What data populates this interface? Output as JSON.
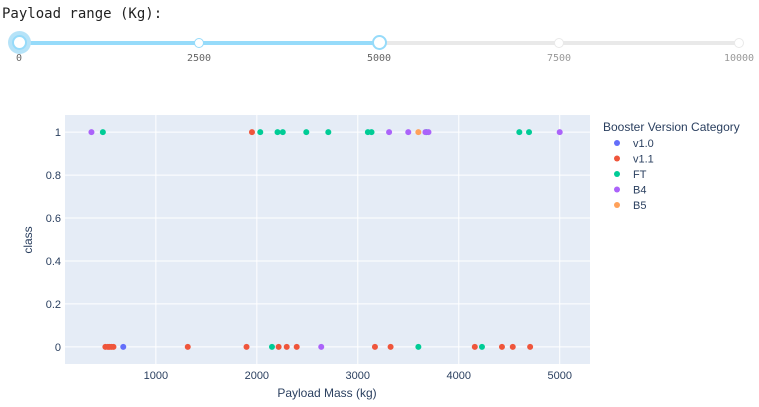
{
  "slider": {
    "label": "Payload range (Kg):",
    "min": 0,
    "max": 10000,
    "value": [
      0,
      5000
    ],
    "marks": [
      "0",
      "2500",
      "5000",
      "7500",
      "10000"
    ],
    "colors": {
      "track": "#96dbfa",
      "rail": "#e9e9e9"
    }
  },
  "chart_data": {
    "type": "scatter",
    "xlabel": "Payload Mass (kg)",
    "ylabel": "class",
    "xlim": [
      100,
      5300
    ],
    "ylim": [
      -0.08,
      1.08
    ],
    "xticks": [
      1000,
      2000,
      3000,
      4000,
      5000
    ],
    "xtick_labels": [
      "1000",
      "2000",
      "3000",
      "4000",
      "5000"
    ],
    "yticks": [
      0,
      0.2,
      0.4,
      0.6,
      0.8,
      1
    ],
    "ytick_labels": [
      "0",
      "0.2",
      "0.4",
      "0.6",
      "0.8",
      "1"
    ],
    "grid": true,
    "legend_title": "Booster Version Category",
    "legend_position": "right",
    "plot_background": "#e5ecf6",
    "series": [
      {
        "name": "v1.0",
        "color": "#636efa",
        "points": [
          [
            677,
            0
          ]
        ]
      },
      {
        "name": "v1.1",
        "color": "#ef553b",
        "points": [
          [
            500,
            0
          ],
          [
            525,
            0
          ],
          [
            540,
            0
          ],
          [
            560,
            0
          ],
          [
            580,
            0
          ],
          [
            1316,
            0
          ],
          [
            1898,
            0
          ],
          [
            1952,
            1
          ],
          [
            2216,
            0
          ],
          [
            2296,
            0
          ],
          [
            2395,
            0
          ],
          [
            3170,
            0
          ],
          [
            3325,
            0
          ],
          [
            4159,
            0
          ],
          [
            4428,
            0
          ],
          [
            4535,
            0
          ],
          [
            4707,
            0
          ]
        ]
      },
      {
        "name": "FT",
        "color": "#00cc96",
        "points": [
          [
            475,
            1
          ],
          [
            2034,
            1
          ],
          [
            2150,
            0
          ],
          [
            2205,
            1
          ],
          [
            2257,
            1
          ],
          [
            2490,
            1
          ],
          [
            2708,
            1
          ],
          [
            3100,
            1
          ],
          [
            3136,
            1
          ],
          [
            3600,
            0
          ],
          [
            3681,
            1
          ],
          [
            4230,
            0
          ],
          [
            4600,
            1
          ],
          [
            4696,
            1
          ]
        ]
      },
      {
        "name": "B4",
        "color": "#ab63fa",
        "points": [
          [
            362,
            1
          ],
          [
            2638,
            0
          ],
          [
            3310,
            1
          ],
          [
            3500,
            1
          ],
          [
            3670,
            1
          ],
          [
            3700,
            1
          ],
          [
            5000,
            1
          ]
        ]
      },
      {
        "name": "B5",
        "color": "#ffa15a",
        "points": [
          [
            3600,
            1
          ]
        ]
      }
    ]
  }
}
